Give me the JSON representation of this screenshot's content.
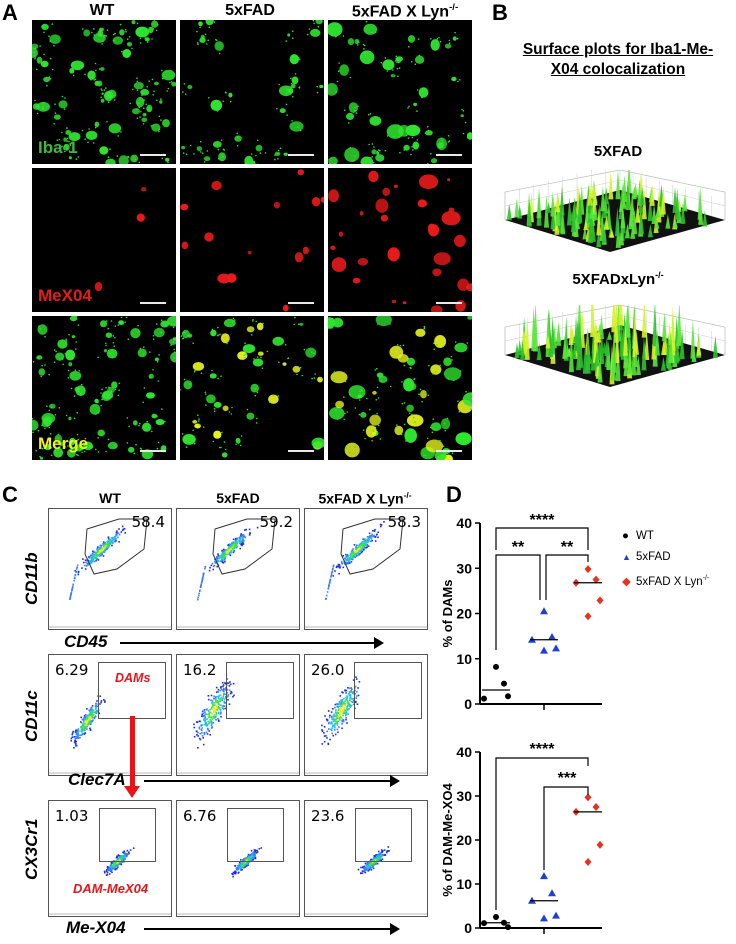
{
  "panelA": {
    "label": "A",
    "columns": [
      "WT",
      "5xFAD",
      "5xFAD X Lyn"
    ],
    "column_sup": "-/-",
    "rows": [
      {
        "channel": "Iba-1",
        "color": "#3fb83f"
      },
      {
        "channel": "MeX04",
        "color": "#e81b1b"
      },
      {
        "channel": "Merge",
        "color": "#f2f21a"
      }
    ]
  },
  "panelB": {
    "label": "B",
    "title_line1": "Surface plots for Iba1-Me-",
    "title_line2": "X04 colocalization",
    "plots": [
      {
        "title": "5XFAD",
        "sup": ""
      },
      {
        "title": "5XFADxLyn",
        "sup": "-/-"
      }
    ]
  },
  "panelC": {
    "label": "C",
    "columns": [
      "WT",
      "5xFAD",
      "5xFAD X Lyn"
    ],
    "column_sup": "-/-",
    "rows": [
      {
        "ylabel": "CD11b",
        "xlabel": "CD45",
        "values": [
          "58.4",
          "59.2",
          "58.3"
        ]
      },
      {
        "ylabel": "CD11c",
        "xlabel": "Clec7A",
        "values": [
          "6.29",
          "16.2",
          "26.0"
        ],
        "gate_label": "DAMs"
      },
      {
        "ylabel": "CX3Cr1",
        "xlabel": "Me-X04",
        "values": [
          "1.03",
          "6.76",
          "23.6"
        ],
        "gate_label": "DAM-MeX04"
      }
    ]
  },
  "panelD": {
    "label": "D",
    "legend": [
      {
        "name": "WT",
        "marker": "circle",
        "color": "#000000"
      },
      {
        "name": "5xFAD",
        "marker": "triangle",
        "color": "#1f3fd6"
      },
      {
        "name": "5xFAD X Lyn",
        "sup": "-/-",
        "marker": "diamond",
        "color": "#e8321e"
      }
    ]
  },
  "chart_data": [
    {
      "type": "scatter",
      "title": "",
      "ylabel": "% of DAMs",
      "xlabel": "",
      "ylim": [
        0,
        40
      ],
      "yticks": [
        0,
        10,
        20,
        30,
        40
      ],
      "categories": [
        "WT",
        "5xFAD",
        "5xFAD X Lyn-/-"
      ],
      "series": [
        {
          "name": "WT",
          "values": [
            8.2,
            4.5,
            1.2,
            1.7
          ],
          "median": 3.1
        },
        {
          "name": "5xFAD",
          "values": [
            20.5,
            14.8,
            14.2,
            12.3,
            11.8
          ],
          "median": 14.2
        },
        {
          "name": "5xFAD X Lyn-/-",
          "values": [
            29.8,
            27.5,
            26.8,
            22.9,
            19.4
          ],
          "median": 26.8
        }
      ],
      "significance": [
        {
          "pair": [
            "WT",
            "5xFAD X Lyn-/-"
          ],
          "label": "****"
        },
        {
          "pair": [
            "WT",
            "5xFAD"
          ],
          "label": "**"
        },
        {
          "pair": [
            "5xFAD",
            "5xFAD X Lyn-/-"
          ],
          "label": "**"
        }
      ]
    },
    {
      "type": "scatter",
      "title": "",
      "ylabel": "% of DAM-Me-XO4",
      "xlabel": "",
      "ylim": [
        0,
        40
      ],
      "yticks": [
        0,
        10,
        20,
        30,
        40
      ],
      "categories": [
        "WT",
        "5xFAD",
        "5xFAD X Lyn-/-"
      ],
      "series": [
        {
          "name": "WT",
          "values": [
            2.5,
            1.2,
            1.1,
            0.2
          ],
          "median": 1.2
        },
        {
          "name": "5xFAD",
          "values": [
            11.8,
            7.9,
            6.2,
            2.8,
            2.2
          ],
          "median": 6.2
        },
        {
          "name": "5xFAD X Lyn-/-",
          "values": [
            29.7,
            27.5,
            26.4,
            18.9,
            15.0
          ],
          "median": 26.4
        }
      ],
      "significance": [
        {
          "pair": [
            "WT",
            "5xFAD X Lyn-/-"
          ],
          "label": "****"
        },
        {
          "pair": [
            "5xFAD",
            "5xFAD X Lyn-/-"
          ],
          "label": "***"
        }
      ]
    }
  ]
}
